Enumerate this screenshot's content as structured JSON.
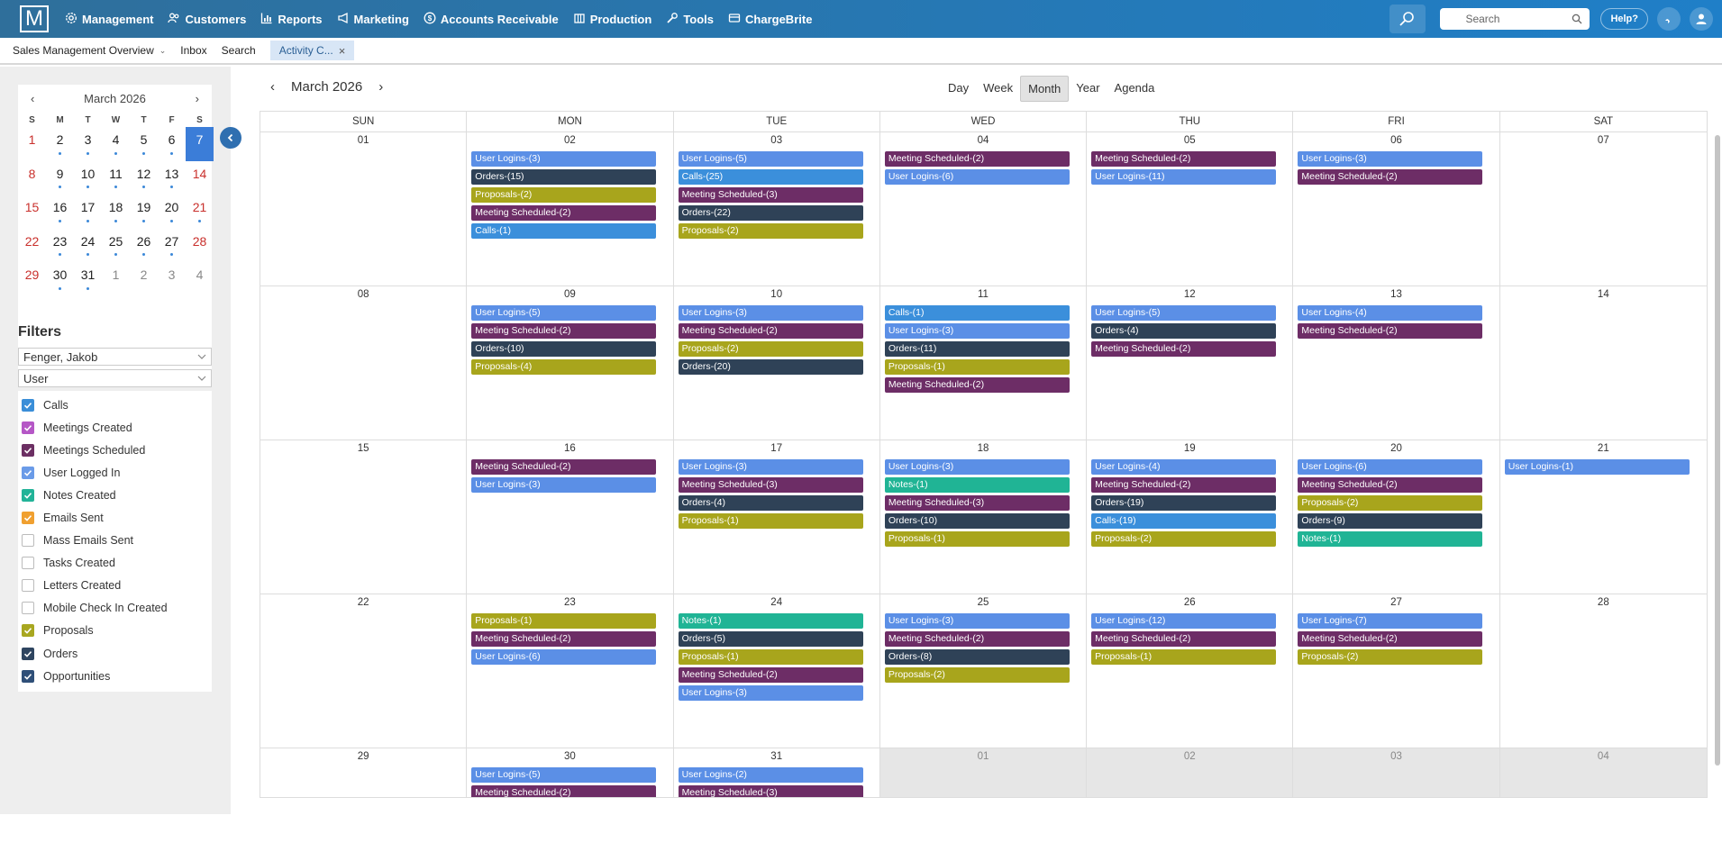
{
  "logo": "M",
  "nav": [
    {
      "label": "Management",
      "icon": "gear-icon"
    },
    {
      "label": "Customers",
      "icon": "users-icon"
    },
    {
      "label": "Reports",
      "icon": "chart-icon"
    },
    {
      "label": "Marketing",
      "icon": "megaphone-icon"
    },
    {
      "label": "Accounts Receivable",
      "icon": "dollar-icon"
    },
    {
      "label": "Production",
      "icon": "building-icon"
    },
    {
      "label": "Tools",
      "icon": "wrench-icon"
    },
    {
      "label": "ChargeBrite",
      "icon": "card-icon"
    }
  ],
  "search": {
    "placeholder": "Search"
  },
  "help_label": "Help?",
  "tabs": [
    {
      "label": "Sales Management Overview"
    },
    {
      "label": "Inbox"
    },
    {
      "label": "Search"
    },
    {
      "label": "Activity C..."
    }
  ],
  "mini_calendar": {
    "title": "March 2026",
    "prev": "‹",
    "next": "›",
    "dows": [
      "S",
      "M",
      "T",
      "W",
      "T",
      "F",
      "S"
    ],
    "selected": "7"
  },
  "filters": {
    "title": "Filters",
    "user_select": "Fenger, Jakob",
    "type_select": "User",
    "items": [
      {
        "label": "Calls",
        "checked": true,
        "color": "#3a8ed8"
      },
      {
        "label": "Meetings Created",
        "checked": true,
        "color": "#b557c6"
      },
      {
        "label": "Meetings Scheduled",
        "checked": true,
        "color": "#6c2f63"
      },
      {
        "label": "User Logged In",
        "checked": true,
        "color": "#6a9be8"
      },
      {
        "label": "Notes Created",
        "checked": true,
        "color": "#22b398"
      },
      {
        "label": "Emails Sent",
        "checked": true,
        "color": "#f0a030"
      },
      {
        "label": "Mass Emails Sent",
        "checked": false,
        "color": "#ffffff"
      },
      {
        "label": "Tasks Created",
        "checked": false,
        "color": "#ffffff"
      },
      {
        "label": "Letters Created",
        "checked": false,
        "color": "#ffffff"
      },
      {
        "label": "Mobile Check In Created",
        "checked": false,
        "color": "#ffffff"
      },
      {
        "label": "Proposals",
        "checked": true,
        "color": "#a8a720"
      },
      {
        "label": "Orders",
        "checked": true,
        "color": "#2f4560"
      },
      {
        "label": "Opportunities",
        "checked": true,
        "color": "#2f4f78"
      }
    ]
  },
  "calendar": {
    "title": "March 2026",
    "prev": "‹",
    "next": "›",
    "views": [
      "Day",
      "Week",
      "Month",
      "Year",
      "Agenda"
    ],
    "active_view": "Month",
    "dows": [
      "SUN",
      "MON",
      "TUE",
      "WED",
      "THU",
      "FRI",
      "SAT"
    ]
  },
  "colors": {
    "User Logins": "#5b8fe6",
    "Orders": "#2f4257",
    "Proposals": "#a8a51c",
    "Meeting Scheduled": "#6d2d66",
    "Calls": "#3b8fdb",
    "Notes": "#20b495"
  },
  "mini_days": [
    {
      "d": "1",
      "c": "red",
      "dot": false
    },
    {
      "d": "2",
      "dot": true
    },
    {
      "d": "3",
      "dot": true
    },
    {
      "d": "4",
      "dot": true
    },
    {
      "d": "5",
      "dot": true
    },
    {
      "d": "6",
      "dot": true
    },
    {
      "d": "7",
      "c": "sel",
      "dot": false
    },
    {
      "d": "8",
      "c": "red",
      "dot": false
    },
    {
      "d": "9",
      "dot": true
    },
    {
      "d": "10",
      "dot": true
    },
    {
      "d": "11",
      "dot": true
    },
    {
      "d": "12",
      "dot": true
    },
    {
      "d": "13",
      "dot": true
    },
    {
      "d": "14",
      "c": "red",
      "dot": false
    },
    {
      "d": "15",
      "c": "red",
      "dot": false
    },
    {
      "d": "16",
      "dot": true
    },
    {
      "d": "17",
      "dot": true
    },
    {
      "d": "18",
      "dot": true
    },
    {
      "d": "19",
      "dot": true
    },
    {
      "d": "20",
      "dot": true
    },
    {
      "d": "21",
      "c": "red",
      "dot": true
    },
    {
      "d": "22",
      "c": "red",
      "dot": false
    },
    {
      "d": "23",
      "dot": true
    },
    {
      "d": "24",
      "dot": true
    },
    {
      "d": "25",
      "dot": true
    },
    {
      "d": "26",
      "dot": true
    },
    {
      "d": "27",
      "dot": true
    },
    {
      "d": "28",
      "c": "red",
      "dot": false
    },
    {
      "d": "29",
      "c": "red",
      "dot": false
    },
    {
      "d": "30",
      "dot": true
    },
    {
      "d": "31",
      "dot": true
    },
    {
      "d": "1",
      "c": "gray",
      "dot": false
    },
    {
      "d": "2",
      "c": "gray",
      "dot": false
    },
    {
      "d": "3",
      "c": "gray",
      "dot": false
    },
    {
      "d": "4",
      "c": "gray",
      "dot": false
    }
  ],
  "weeks": [
    [
      {
        "num": "01",
        "events": []
      },
      {
        "num": "02",
        "events": [
          {
            "t": "User Logins",
            "n": "3"
          },
          {
            "t": "Orders",
            "n": "15"
          },
          {
            "t": "Proposals",
            "n": "2"
          },
          {
            "t": "Meeting Scheduled",
            "n": "2"
          },
          {
            "t": "Calls",
            "n": "1"
          }
        ]
      },
      {
        "num": "03",
        "events": [
          {
            "t": "User Logins",
            "n": "5"
          },
          {
            "t": "Calls",
            "n": "25"
          },
          {
            "t": "Meeting Scheduled",
            "n": "3"
          },
          {
            "t": "Orders",
            "n": "22"
          },
          {
            "t": "Proposals",
            "n": "2"
          }
        ]
      },
      {
        "num": "04",
        "events": [
          {
            "t": "Meeting Scheduled",
            "n": "2"
          },
          {
            "t": "User Logins",
            "n": "6"
          }
        ]
      },
      {
        "num": "05",
        "events": [
          {
            "t": "Meeting Scheduled",
            "n": "2"
          },
          {
            "t": "User Logins",
            "n": "11"
          }
        ]
      },
      {
        "num": "06",
        "events": [
          {
            "t": "User Logins",
            "n": "3"
          },
          {
            "t": "Meeting Scheduled",
            "n": "2"
          }
        ]
      },
      {
        "num": "07",
        "events": []
      }
    ],
    [
      {
        "num": "08",
        "events": []
      },
      {
        "num": "09",
        "events": [
          {
            "t": "User Logins",
            "n": "5"
          },
          {
            "t": "Meeting Scheduled",
            "n": "2"
          },
          {
            "t": "Orders",
            "n": "10"
          },
          {
            "t": "Proposals",
            "n": "4"
          }
        ]
      },
      {
        "num": "10",
        "events": [
          {
            "t": "User Logins",
            "n": "3"
          },
          {
            "t": "Meeting Scheduled",
            "n": "2"
          },
          {
            "t": "Proposals",
            "n": "2"
          },
          {
            "t": "Orders",
            "n": "20"
          }
        ]
      },
      {
        "num": "11",
        "events": [
          {
            "t": "Calls",
            "n": "1"
          },
          {
            "t": "User Logins",
            "n": "3"
          },
          {
            "t": "Orders",
            "n": "11"
          },
          {
            "t": "Proposals",
            "n": "1"
          },
          {
            "t": "Meeting Scheduled",
            "n": "2"
          }
        ]
      },
      {
        "num": "12",
        "events": [
          {
            "t": "User Logins",
            "n": "5"
          },
          {
            "t": "Orders",
            "n": "4"
          },
          {
            "t": "Meeting Scheduled",
            "n": "2"
          }
        ]
      },
      {
        "num": "13",
        "events": [
          {
            "t": "User Logins",
            "n": "4"
          },
          {
            "t": "Meeting Scheduled",
            "n": "2"
          }
        ]
      },
      {
        "num": "14",
        "events": []
      }
    ],
    [
      {
        "num": "15",
        "events": []
      },
      {
        "num": "16",
        "events": [
          {
            "t": "Meeting Scheduled",
            "n": "2"
          },
          {
            "t": "User Logins",
            "n": "3"
          }
        ]
      },
      {
        "num": "17",
        "events": [
          {
            "t": "User Logins",
            "n": "3"
          },
          {
            "t": "Meeting Scheduled",
            "n": "3"
          },
          {
            "t": "Orders",
            "n": "4"
          },
          {
            "t": "Proposals",
            "n": "1"
          }
        ]
      },
      {
        "num": "18",
        "events": [
          {
            "t": "User Logins",
            "n": "3"
          },
          {
            "t": "Notes",
            "n": "1"
          },
          {
            "t": "Meeting Scheduled",
            "n": "3"
          },
          {
            "t": "Orders",
            "n": "10"
          },
          {
            "t": "Proposals",
            "n": "1"
          }
        ]
      },
      {
        "num": "19",
        "events": [
          {
            "t": "User Logins",
            "n": "4"
          },
          {
            "t": "Meeting Scheduled",
            "n": "2"
          },
          {
            "t": "Orders",
            "n": "19"
          },
          {
            "t": "Calls",
            "n": "19"
          },
          {
            "t": "Proposals",
            "n": "2"
          }
        ]
      },
      {
        "num": "20",
        "events": [
          {
            "t": "User Logins",
            "n": "6"
          },
          {
            "t": "Meeting Scheduled",
            "n": "2"
          },
          {
            "t": "Proposals",
            "n": "2"
          },
          {
            "t": "Orders",
            "n": "9"
          },
          {
            "t": "Notes",
            "n": "1"
          }
        ]
      },
      {
        "num": "21",
        "events": [
          {
            "t": "User Logins",
            "n": "1"
          }
        ]
      }
    ],
    [
      {
        "num": "22",
        "events": []
      },
      {
        "num": "23",
        "events": [
          {
            "t": "Proposals",
            "n": "1"
          },
          {
            "t": "Meeting Scheduled",
            "n": "2"
          },
          {
            "t": "User Logins",
            "n": "6"
          }
        ]
      },
      {
        "num": "24",
        "events": [
          {
            "t": "Notes",
            "n": "1"
          },
          {
            "t": "Orders",
            "n": "5"
          },
          {
            "t": "Proposals",
            "n": "1"
          },
          {
            "t": "Meeting Scheduled",
            "n": "2"
          },
          {
            "t": "User Logins",
            "n": "3"
          }
        ]
      },
      {
        "num": "25",
        "events": [
          {
            "t": "User Logins",
            "n": "3"
          },
          {
            "t": "Meeting Scheduled",
            "n": "2"
          },
          {
            "t": "Orders",
            "n": "8"
          },
          {
            "t": "Proposals",
            "n": "2"
          }
        ]
      },
      {
        "num": "26",
        "events": [
          {
            "t": "User Logins",
            "n": "12"
          },
          {
            "t": "Meeting Scheduled",
            "n": "2"
          },
          {
            "t": "Proposals",
            "n": "1"
          }
        ]
      },
      {
        "num": "27",
        "events": [
          {
            "t": "User Logins",
            "n": "7"
          },
          {
            "t": "Meeting Scheduled",
            "n": "2"
          },
          {
            "t": "Proposals",
            "n": "2"
          }
        ]
      },
      {
        "num": "28",
        "events": []
      }
    ],
    [
      {
        "num": "29",
        "events": []
      },
      {
        "num": "30",
        "events": [
          {
            "t": "User Logins",
            "n": "5"
          },
          {
            "t": "Meeting Scheduled",
            "n": "2"
          }
        ]
      },
      {
        "num": "31",
        "events": [
          {
            "t": "User Logins",
            "n": "2"
          },
          {
            "t": "Meeting Scheduled",
            "n": "3"
          }
        ]
      },
      {
        "num": "01",
        "other": true,
        "events": []
      },
      {
        "num": "02",
        "other": true,
        "events": []
      },
      {
        "num": "03",
        "other": true,
        "events": []
      },
      {
        "num": "04",
        "other": true,
        "events": []
      }
    ]
  ]
}
